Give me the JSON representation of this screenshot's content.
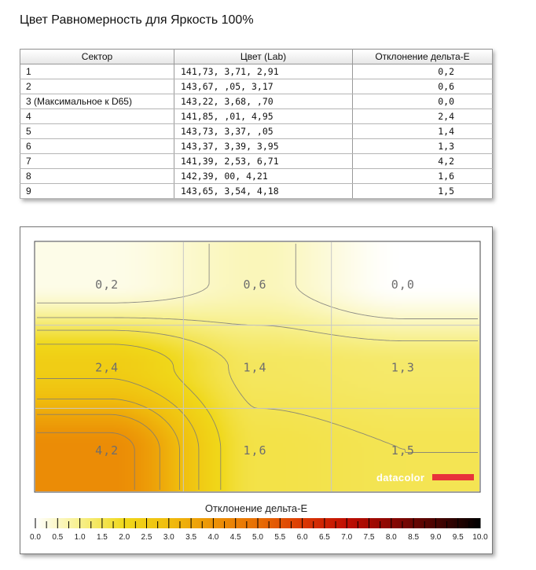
{
  "page": {
    "title": "Цвет Равномерность для Яркость 100%"
  },
  "table": {
    "headers": [
      "Сектор",
      "Цвет (Lab)",
      "Отклонение дельта-E"
    ],
    "rows": [
      {
        "sector": "1",
        "lab": "141,73,    3,71,    2,91",
        "delta_e": "0,2"
      },
      {
        "sector": "2",
        "lab": "143,67,     ,05,    3,17",
        "delta_e": "0,6"
      },
      {
        "sector": "3 (Максимальное к D65)",
        "lab": "143,22,    3,68,     ,70",
        "delta_e": "0,0"
      },
      {
        "sector": "4",
        "lab": "141,85,     ,01,    4,95",
        "delta_e": "2,4"
      },
      {
        "sector": "5",
        "lab": "143,73,    3,37,     ,05",
        "delta_e": "1,4"
      },
      {
        "sector": "6",
        "lab": "143,37,    3,39,    3,95",
        "delta_e": "1,3"
      },
      {
        "sector": "7",
        "lab": "141,39,    2,53,    6,71",
        "delta_e": "4,2"
      },
      {
        "sector": "8",
        "lab": "142,39,     00,    4,21",
        "delta_e": "1,6"
      },
      {
        "sector": "9",
        "lab": "143,65,    3,54,    4,18",
        "delta_e": "1,5"
      }
    ]
  },
  "chart_data": {
    "type": "heatmap",
    "title": "",
    "grid": {
      "rows": 3,
      "cols": 3,
      "gridlines": true
    },
    "cells": [
      [
        "0,2",
        "0,6",
        "0,0"
      ],
      [
        "2,4",
        "1,4",
        "1,3"
      ],
      [
        "4,2",
        "1,6",
        "1,5"
      ]
    ],
    "values": [
      [
        0.2,
        0.6,
        0.0
      ],
      [
        2.4,
        1.4,
        1.3
      ],
      [
        4.2,
        1.6,
        1.5
      ]
    ],
    "colorbar": {
      "label": "Отклонение дельта-E",
      "ticks": [
        "0.0",
        "0.5",
        "1.0",
        "1.5",
        "2.0",
        "2.5",
        "3.0",
        "3.5",
        "4.0",
        "4.5",
        "5.0",
        "5.5",
        "6.0",
        "6.5",
        "7.0",
        "7.5",
        "8.0",
        "8.5",
        "9.0",
        "9.5",
        "10.0"
      ],
      "range": [
        0,
        10
      ],
      "stops": [
        {
          "v": 0.0,
          "color": "#ffffff"
        },
        {
          "v": 1.0,
          "color": "#f7f08c"
        },
        {
          "v": 2.0,
          "color": "#f0d81a"
        },
        {
          "v": 3.0,
          "color": "#f0bd0e"
        },
        {
          "v": 4.0,
          "color": "#ec9306"
        },
        {
          "v": 5.0,
          "color": "#e86e04"
        },
        {
          "v": 6.0,
          "color": "#dc3a04"
        },
        {
          "v": 7.0,
          "color": "#c00e02"
        },
        {
          "v": 8.0,
          "color": "#8a0702"
        },
        {
          "v": 9.0,
          "color": "#4a0401"
        },
        {
          "v": 10.0,
          "color": "#000000"
        }
      ]
    },
    "brand": {
      "name": "datacolor",
      "accent": "#e8323a"
    }
  }
}
